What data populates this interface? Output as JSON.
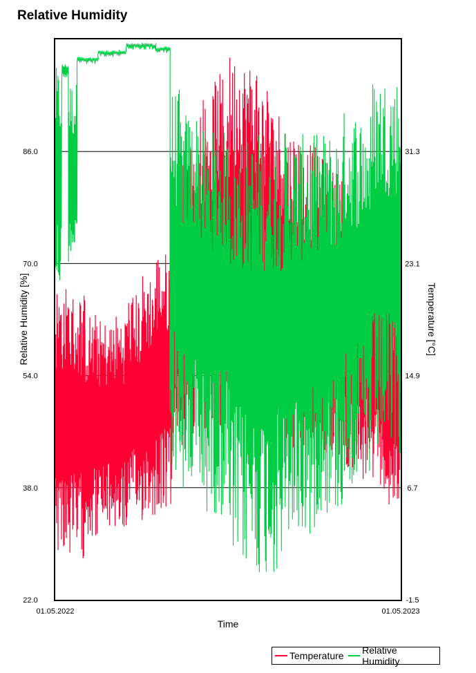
{
  "chart_data": {
    "type": "line",
    "title": "Relative Humidity",
    "xlabel": "Time",
    "ylabel_left": "Relative Humidity [%]",
    "ylabel_right": "Temperature [°C]",
    "x_ticks": [
      "01.05.2022",
      "01.05.2023"
    ],
    "x_range": [
      "01.05.2022",
      "01.05.2023"
    ],
    "y_left_ticks": [
      "22.0",
      "38.0",
      "54.0",
      "70.0",
      "86.0"
    ],
    "y_left_range": [
      22,
      102
    ],
    "y_right_ticks": [
      "-1.5",
      "6.7",
      "14.9",
      "23.1",
      "31.3"
    ],
    "y_right_range": [
      -1.5,
      39.5
    ],
    "grid": "horizontal",
    "legend_position": "bottom-right",
    "series": [
      {
        "name": "Temperature",
        "axis": "right",
        "color": "#ff0033",
        "segments": [
          {
            "from": "01.05.2022",
            "to": "15.05.2022",
            "low": 2.0,
            "high": 21.5
          },
          {
            "from": "15.05.2022",
            "to": "01.06.2022",
            "low": 1.5,
            "high": 21.0
          },
          {
            "from": "01.06.2022",
            "to": "15.06.2022",
            "low": 3.0,
            "high": 19.5
          },
          {
            "from": "15.06.2022",
            "to": "01.07.2022",
            "low": 3.5,
            "high": 19.0
          },
          {
            "from": "01.07.2022",
            "to": "15.07.2022",
            "low": 3.5,
            "high": 19.5
          },
          {
            "from": "15.07.2022",
            "to": "01.08.2022",
            "low": 4.0,
            "high": 21.0
          },
          {
            "from": "01.08.2022",
            "to": "15.08.2022",
            "low": 4.5,
            "high": 22.5
          },
          {
            "from": "15.08.2022",
            "to": "01.09.2022",
            "low": 5.0,
            "high": 24.0
          },
          {
            "from": "01.09.2022",
            "to": "15.09.2022",
            "low": 9.0,
            "high": 30.5
          },
          {
            "from": "15.09.2022",
            "to": "01.10.2022",
            "low": 10.0,
            "high": 32.0
          },
          {
            "from": "01.10.2022",
            "to": "15.10.2022",
            "low": 10.5,
            "high": 35.5
          },
          {
            "from": "15.10.2022",
            "to": "01.11.2022",
            "low": 11.0,
            "high": 37.0
          },
          {
            "from": "01.11.2022",
            "to": "15.11.2022",
            "low": 11.5,
            "high": 38.5
          },
          {
            "from": "15.11.2022",
            "to": "01.12.2022",
            "low": 12.0,
            "high": 38.0
          },
          {
            "from": "01.12.2022",
            "to": "15.12.2022",
            "low": 11.0,
            "high": 36.5
          },
          {
            "from": "15.12.2022",
            "to": "01.01.2023",
            "low": 10.0,
            "high": 34.5
          },
          {
            "from": "01.01.2023",
            "to": "15.01.2023",
            "low": 9.5,
            "high": 33.0
          },
          {
            "from": "15.01.2023",
            "to": "01.02.2023",
            "low": 9.0,
            "high": 32.0
          },
          {
            "from": "01.02.2023",
            "to": "15.02.2023",
            "low": 9.0,
            "high": 31.0
          },
          {
            "from": "15.02.2023",
            "to": "01.03.2023",
            "low": 8.5,
            "high": 30.0
          },
          {
            "from": "01.03.2023",
            "to": "15.03.2023",
            "low": 8.0,
            "high": 28.5
          },
          {
            "from": "15.03.2023",
            "to": "01.04.2023",
            "low": 7.0,
            "high": 27.0
          },
          {
            "from": "01.04.2023",
            "to": "15.04.2023",
            "low": 6.5,
            "high": 25.0
          },
          {
            "from": "15.04.2023",
            "to": "01.05.2023",
            "low": 5.0,
            "high": 22.0
          }
        ]
      },
      {
        "name": "Relative Humidity",
        "axis": "left",
        "color": "#00cc44",
        "segments": [
          {
            "from": "01.05.2022",
            "to": "08.05.2022",
            "low": 65.0,
            "high": 98.0
          },
          {
            "from": "08.05.2022",
            "to": "15.05.2022",
            "low": 96.5,
            "high": 98.5
          },
          {
            "from": "15.05.2022",
            "to": "24.05.2022",
            "low": 70.0,
            "high": 96.0
          },
          {
            "from": "24.05.2022",
            "to": "15.06.2022",
            "low": 98.5,
            "high": 99.5
          },
          {
            "from": "15.06.2022",
            "to": "15.07.2022",
            "low": 99.5,
            "high": 100.5
          },
          {
            "from": "15.07.2022",
            "to": "15.08.2022",
            "low": 100.5,
            "high": 101.5
          },
          {
            "from": "15.08.2022",
            "to": "30.08.2022",
            "low": 100.0,
            "high": 101.0
          },
          {
            "from": "30.08.2022",
            "to": "10.09.2022",
            "low": 40.0,
            "high": 95.0
          },
          {
            "from": "10.09.2022",
            "to": "01.10.2022",
            "low": 36.0,
            "high": 92.0
          },
          {
            "from": "01.10.2022",
            "to": "01.11.2022",
            "low": 34.0,
            "high": 89.0
          },
          {
            "from": "01.11.2022",
            "to": "01.12.2022",
            "low": 26.0,
            "high": 88.0
          },
          {
            "from": "01.12.2022",
            "to": "01.01.2023",
            "low": 25.0,
            "high": 89.0
          },
          {
            "from": "01.01.2023",
            "to": "01.02.2023",
            "low": 30.0,
            "high": 88.5
          },
          {
            "from": "01.02.2023",
            "to": "01.03.2023",
            "low": 34.0,
            "high": 89.0
          },
          {
            "from": "01.03.2023",
            "to": "01.04.2023",
            "low": 38.0,
            "high": 92.0
          },
          {
            "from": "01.04.2023",
            "to": "01.05.2023",
            "low": 42.0,
            "high": 97.0
          }
        ]
      }
    ]
  },
  "legend": {
    "temperature": "Temperature",
    "humidity": "Relative Humidity"
  }
}
